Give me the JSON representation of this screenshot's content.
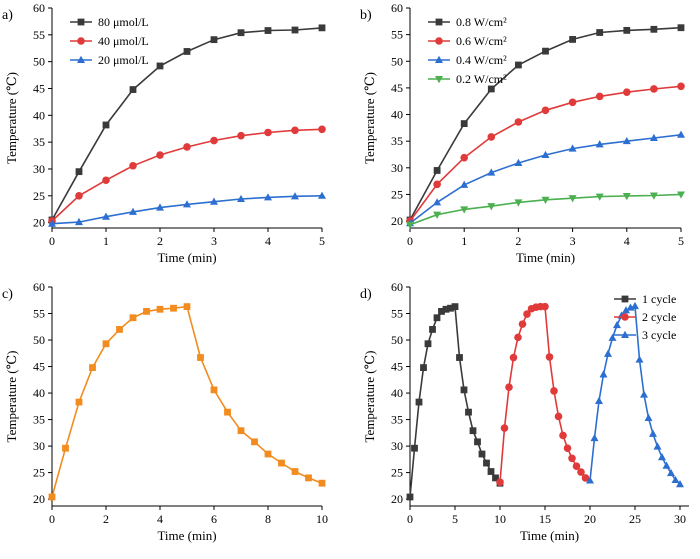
{
  "chart_data": [
    {
      "panel": "a)",
      "type": "line",
      "xlabel": "Time (min)",
      "ylabel": "Temperature (℃)",
      "xlim": [
        0,
        5
      ],
      "ylim": [
        19,
        60
      ],
      "xticks": [
        0,
        1,
        2,
        3,
        4,
        5
      ],
      "yticks": [
        20,
        25,
        30,
        35,
        40,
        45,
        50,
        55,
        60
      ],
      "x": [
        0,
        0.5,
        1,
        1.5,
        2,
        2.5,
        3,
        3.5,
        4,
        4.5,
        5
      ],
      "series": [
        {
          "name": "80 μmol/L",
          "color": "#3a3a3a",
          "marker": "square",
          "values": [
            20.5,
            29.5,
            38.2,
            44.8,
            49.2,
            51.9,
            54.1,
            55.4,
            55.8,
            55.9,
            56.3
          ]
        },
        {
          "name": "40 μmol/L",
          "color": "#e03a3a",
          "marker": "circle",
          "values": [
            20.3,
            25.0,
            27.9,
            30.6,
            32.6,
            34.1,
            35.3,
            36.2,
            36.8,
            37.2,
            37.4
          ]
        },
        {
          "name": "20 μmol/L",
          "color": "#2d6fd0",
          "marker": "triangle",
          "values": [
            19.8,
            20.1,
            21.1,
            22.0,
            22.8,
            23.4,
            23.9,
            24.4,
            24.7,
            24.9,
            25.0
          ]
        }
      ]
    },
    {
      "panel": "b)",
      "type": "line",
      "xlabel": "Time (min)",
      "ylabel": "Temperature (℃)",
      "xlim": [
        0,
        5
      ],
      "ylim": [
        18.7,
        60
      ],
      "xticks": [
        0,
        1,
        2,
        3,
        4,
        5
      ],
      "yticks": [
        20,
        25,
        30,
        35,
        40,
        45,
        50,
        55,
        60
      ],
      "x": [
        0,
        0.5,
        1,
        1.5,
        2,
        2.5,
        3,
        3.5,
        4,
        4.5,
        5
      ],
      "series": [
        {
          "name": "0.8 W/cm²",
          "color": "#3a3a3a",
          "marker": "square",
          "values": [
            20.2,
            29.5,
            38.3,
            44.8,
            49.3,
            51.9,
            54.1,
            55.4,
            55.8,
            56.0,
            56.3
          ]
        },
        {
          "name": "0.6 W/cm²",
          "color": "#e03a3a",
          "marker": "circle",
          "values": [
            20.0,
            26.9,
            31.9,
            35.8,
            38.6,
            40.8,
            42.3,
            43.4,
            44.2,
            44.8,
            45.3
          ]
        },
        {
          "name": "0.4 W/cm²",
          "color": "#2d6fd0",
          "marker": "triangle",
          "values": [
            19.6,
            23.5,
            26.8,
            29.1,
            30.9,
            32.4,
            33.6,
            34.4,
            35.0,
            35.6,
            36.2
          ]
        },
        {
          "name": "0.2 W/cm²",
          "color": "#4caf50",
          "marker": "triangle-down",
          "values": [
            19.3,
            21.2,
            22.2,
            22.8,
            23.5,
            24.0,
            24.3,
            24.6,
            24.7,
            24.8,
            25.0
          ]
        }
      ]
    },
    {
      "panel": "c)",
      "type": "line",
      "xlabel": "Time (min)",
      "ylabel": "Temperature (℃)",
      "xlim": [
        0,
        10
      ],
      "ylim": [
        18.7,
        60
      ],
      "xticks": [
        0,
        2,
        4,
        6,
        8,
        10
      ],
      "yticks": [
        20,
        25,
        30,
        35,
        40,
        45,
        50,
        55,
        60
      ],
      "x": [
        0,
        0.5,
        1,
        1.5,
        2,
        2.5,
        3,
        3.5,
        4,
        4.5,
        5,
        5.5,
        6,
        6.5,
        7,
        7.5,
        8,
        8.5,
        9,
        9.5,
        10
      ],
      "series": [
        {
          "name": "",
          "color": "#f28c1e",
          "marker": "square",
          "values": [
            20.4,
            29.6,
            38.3,
            44.8,
            49.3,
            52.0,
            54.2,
            55.4,
            55.8,
            56.0,
            56.3,
            46.7,
            40.6,
            36.4,
            32.9,
            30.8,
            28.5,
            26.8,
            25.2,
            24.0,
            23.0
          ]
        }
      ]
    },
    {
      "panel": "d)",
      "type": "line",
      "xlabel": "Time (min)",
      "ylabel": "Temperature (℃)",
      "xlim": [
        0,
        31
      ],
      "ylim": [
        18.7,
        60
      ],
      "xticks": [
        0,
        5,
        10,
        15,
        20,
        25,
        30
      ],
      "yticks": [
        20,
        25,
        30,
        35,
        40,
        45,
        50,
        55,
        60
      ],
      "series": [
        {
          "name": "1 cycle",
          "color": "#3a3a3a",
          "marker": "square",
          "x": [
            0,
            0.5,
            1,
            1.5,
            2,
            2.5,
            3,
            3.5,
            4,
            4.5,
            5,
            5.5,
            6,
            6.5,
            7,
            7.5,
            8,
            8.5,
            9,
            9.5,
            10
          ],
          "values": [
            20.4,
            29.6,
            38.3,
            44.8,
            49.3,
            52.0,
            54.2,
            55.4,
            55.8,
            56.0,
            56.3,
            46.7,
            40.6,
            36.4,
            32.9,
            30.8,
            28.5,
            26.8,
            25.2,
            24.0,
            23.0
          ]
        },
        {
          "name": "2 cycle",
          "color": "#e03a3a",
          "marker": "circle",
          "x": [
            10,
            10.5,
            11,
            11.5,
            12,
            12.5,
            13,
            13.5,
            14,
            14.5,
            15,
            15.5,
            16,
            16.5,
            17,
            17.5,
            18,
            18.5,
            19,
            19.5
          ],
          "values": [
            23.2,
            33.4,
            41.1,
            46.7,
            50.5,
            53.0,
            54.9,
            55.9,
            56.2,
            56.3,
            56.3,
            46.8,
            40.4,
            35.6,
            32.0,
            29.6,
            27.7,
            26.2,
            25.1,
            24.0
          ]
        },
        {
          "name": "3 cycle",
          "color": "#2d6fd0",
          "marker": "triangle",
          "x": [
            20,
            20.5,
            21,
            21.5,
            22,
            22.5,
            23,
            23.5,
            24,
            24.5,
            25,
            25.5,
            26,
            26.5,
            27,
            27.5,
            28,
            28.5,
            29,
            29.5,
            30
          ],
          "values": [
            23.5,
            31.5,
            38.5,
            43.5,
            47.4,
            50.4,
            52.8,
            54.6,
            55.6,
            56.1,
            56.4,
            46.3,
            39.7,
            35.3,
            32.3,
            29.9,
            27.9,
            26.3,
            24.9,
            23.6,
            22.8
          ]
        }
      ]
    }
  ]
}
